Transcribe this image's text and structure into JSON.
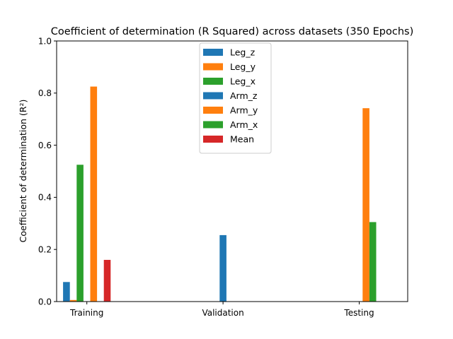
{
  "chart_data": {
    "type": "bar",
    "title": "Coefficient of determination (R Squared) across datasets (350 Epochs)",
    "xlabel": "",
    "ylabel": "Coefficient of determination (R²)",
    "ylim": [
      0,
      1.0
    ],
    "yticks": [
      "0.0",
      "0.2",
      "0.4",
      "0.6",
      "0.8",
      "1.0"
    ],
    "categories": [
      "Training",
      "Validation",
      "Testing"
    ],
    "legend_position": "top-center",
    "series": [
      {
        "name": "Leg_z",
        "color": "#1f77b4",
        "values": [
          0.075,
          0.0,
          0.0
        ]
      },
      {
        "name": "Leg_y",
        "color": "#ff7f0e",
        "values": [
          0.006,
          0.0,
          0.0
        ]
      },
      {
        "name": "Leg_x",
        "color": "#2ca02c",
        "values": [
          0.525,
          0.0,
          0.0
        ]
      },
      {
        "name": "Arm_z",
        "color": "#1f77b4",
        "values": [
          0.0,
          0.255,
          0.0
        ]
      },
      {
        "name": "Arm_y",
        "color": "#ff7f0e",
        "values": [
          0.825,
          0.0,
          0.742
        ]
      },
      {
        "name": "Arm_x",
        "color": "#2ca02c",
        "values": [
          0.0,
          0.0,
          0.305
        ]
      },
      {
        "name": "Mean",
        "color": "#d62728",
        "values": [
          0.16,
          0.0,
          0.0
        ]
      }
    ]
  }
}
